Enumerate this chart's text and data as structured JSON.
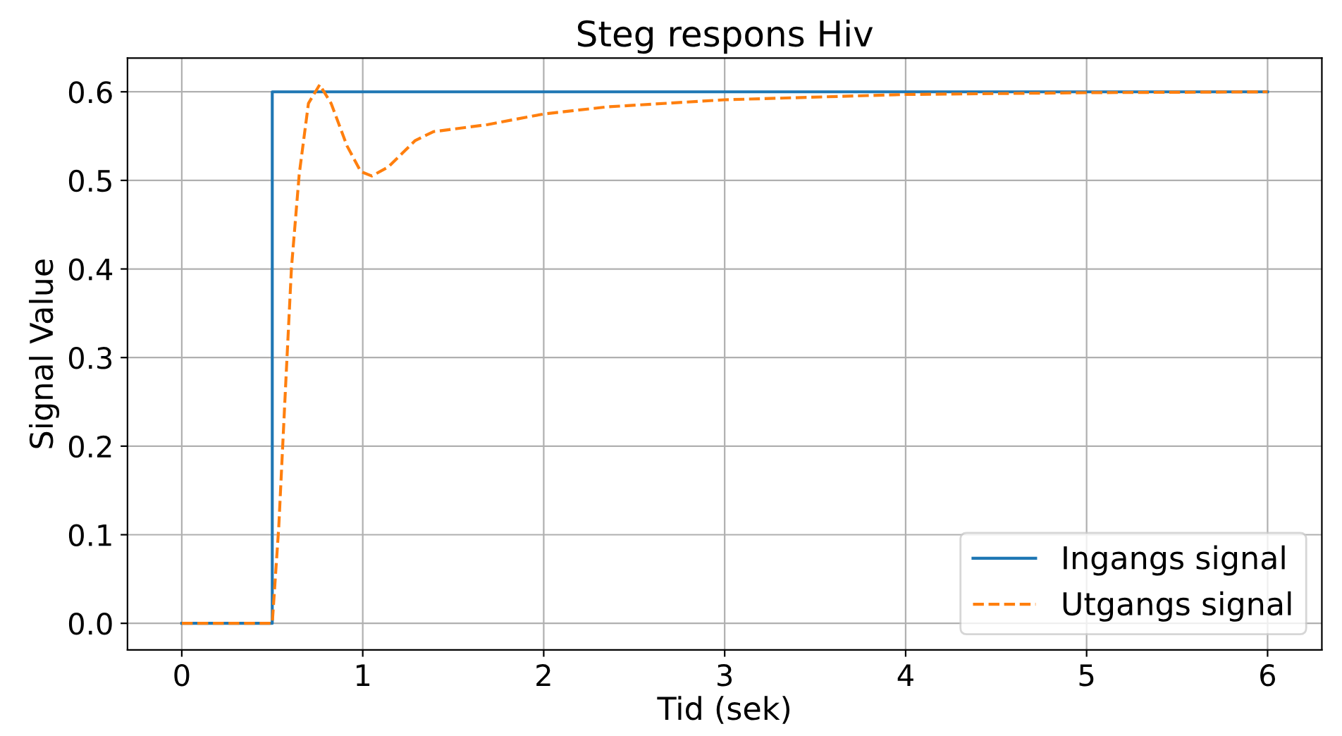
{
  "chart_data": {
    "type": "line",
    "title": "Steg respons Hiv",
    "xlabel": "Tid (sek)",
    "ylabel": "Signal Value",
    "xlim": [
      -0.3,
      6.3
    ],
    "ylim": [
      -0.03,
      0.638
    ],
    "xticks": [
      0,
      1,
      2,
      3,
      4,
      5,
      6
    ],
    "yticks": [
      {
        "value": 0,
        "label": "0.0"
      },
      0.1,
      0.2,
      0.3,
      0.4,
      0.5,
      0.6
    ],
    "grid": true,
    "legend": "bottom right",
    "series": [
      {
        "name": "Ingangs signal",
        "color": "#1f77b4",
        "line_style": "solid",
        "x": [
          0,
          0.5,
          0.5,
          6
        ],
        "values": [
          0,
          0,
          0.6,
          0.6
        ]
      },
      {
        "name": "Utgangs signal",
        "color": "#ff7f0e",
        "line_style": "dashed",
        "x": [
          0,
          0.5,
          0.536,
          0.574,
          0.606,
          0.649,
          0.7,
          0.762,
          0.825,
          0.913,
          0.989,
          1.05,
          1.14,
          1.29,
          1.39,
          1.69,
          2.0,
          2.35,
          3.0,
          4.0,
          5.0,
          6.0
        ],
        "values": [
          0,
          0,
          0.109,
          0.269,
          0.401,
          0.507,
          0.587,
          0.608,
          0.587,
          0.539,
          0.51,
          0.505,
          0.515,
          0.545,
          0.555,
          0.563,
          0.575,
          0.583,
          0.591,
          0.597,
          0.599,
          0.6
        ]
      }
    ]
  }
}
